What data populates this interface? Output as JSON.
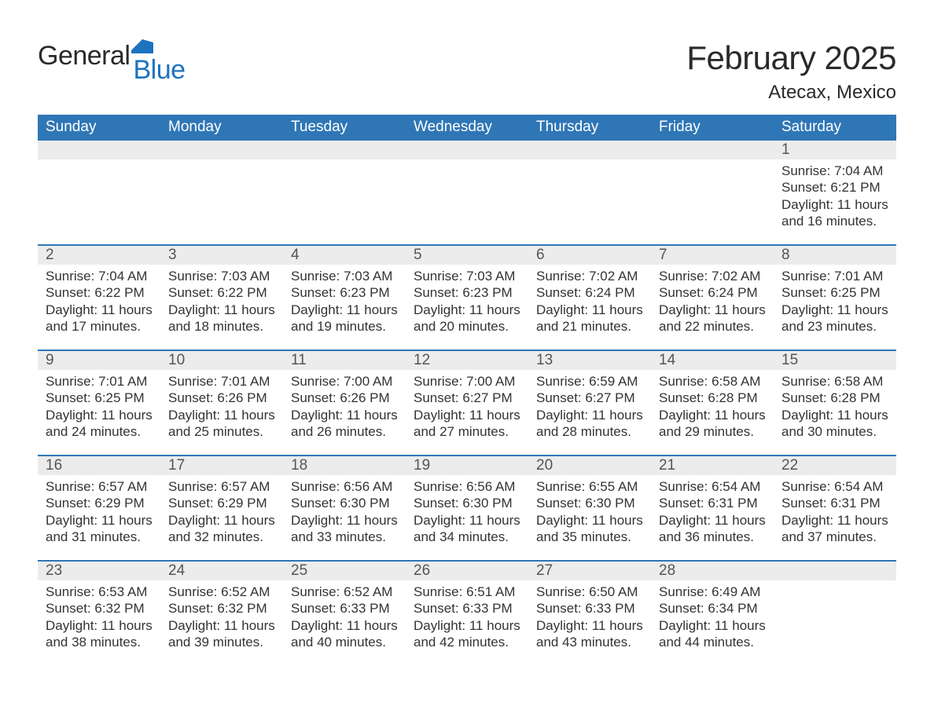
{
  "logo": {
    "text1": "General",
    "text2": "Blue",
    "flag_color": "#1e73be"
  },
  "title": "February 2025",
  "location": "Atecax, Mexico",
  "colors": {
    "header_bg": "#2f76b6",
    "header_text": "#ffffff",
    "row_divider": "#2f76b6",
    "daynum_bg": "#ececec",
    "body_text": "#333333",
    "page_bg": "#ffffff"
  },
  "typography": {
    "title_fontsize": 42,
    "subtitle_fontsize": 24,
    "weekday_fontsize": 19,
    "daynum_fontsize": 19,
    "body_fontsize": 17
  },
  "weekdays": [
    "Sunday",
    "Monday",
    "Tuesday",
    "Wednesday",
    "Thursday",
    "Friday",
    "Saturday"
  ],
  "weeks": [
    [
      null,
      null,
      null,
      null,
      null,
      null,
      {
        "n": "1",
        "sunrise": "Sunrise: 7:04 AM",
        "sunset": "Sunset: 6:21 PM",
        "daylight": "Daylight: 11 hours and 16 minutes."
      }
    ],
    [
      {
        "n": "2",
        "sunrise": "Sunrise: 7:04 AM",
        "sunset": "Sunset: 6:22 PM",
        "daylight": "Daylight: 11 hours and 17 minutes."
      },
      {
        "n": "3",
        "sunrise": "Sunrise: 7:03 AM",
        "sunset": "Sunset: 6:22 PM",
        "daylight": "Daylight: 11 hours and 18 minutes."
      },
      {
        "n": "4",
        "sunrise": "Sunrise: 7:03 AM",
        "sunset": "Sunset: 6:23 PM",
        "daylight": "Daylight: 11 hours and 19 minutes."
      },
      {
        "n": "5",
        "sunrise": "Sunrise: 7:03 AM",
        "sunset": "Sunset: 6:23 PM",
        "daylight": "Daylight: 11 hours and 20 minutes."
      },
      {
        "n": "6",
        "sunrise": "Sunrise: 7:02 AM",
        "sunset": "Sunset: 6:24 PM",
        "daylight": "Daylight: 11 hours and 21 minutes."
      },
      {
        "n": "7",
        "sunrise": "Sunrise: 7:02 AM",
        "sunset": "Sunset: 6:24 PM",
        "daylight": "Daylight: 11 hours and 22 minutes."
      },
      {
        "n": "8",
        "sunrise": "Sunrise: 7:01 AM",
        "sunset": "Sunset: 6:25 PM",
        "daylight": "Daylight: 11 hours and 23 minutes."
      }
    ],
    [
      {
        "n": "9",
        "sunrise": "Sunrise: 7:01 AM",
        "sunset": "Sunset: 6:25 PM",
        "daylight": "Daylight: 11 hours and 24 minutes."
      },
      {
        "n": "10",
        "sunrise": "Sunrise: 7:01 AM",
        "sunset": "Sunset: 6:26 PM",
        "daylight": "Daylight: 11 hours and 25 minutes."
      },
      {
        "n": "11",
        "sunrise": "Sunrise: 7:00 AM",
        "sunset": "Sunset: 6:26 PM",
        "daylight": "Daylight: 11 hours and 26 minutes."
      },
      {
        "n": "12",
        "sunrise": "Sunrise: 7:00 AM",
        "sunset": "Sunset: 6:27 PM",
        "daylight": "Daylight: 11 hours and 27 minutes."
      },
      {
        "n": "13",
        "sunrise": "Sunrise: 6:59 AM",
        "sunset": "Sunset: 6:27 PM",
        "daylight": "Daylight: 11 hours and 28 minutes."
      },
      {
        "n": "14",
        "sunrise": "Sunrise: 6:58 AM",
        "sunset": "Sunset: 6:28 PM",
        "daylight": "Daylight: 11 hours and 29 minutes."
      },
      {
        "n": "15",
        "sunrise": "Sunrise: 6:58 AM",
        "sunset": "Sunset: 6:28 PM",
        "daylight": "Daylight: 11 hours and 30 minutes."
      }
    ],
    [
      {
        "n": "16",
        "sunrise": "Sunrise: 6:57 AM",
        "sunset": "Sunset: 6:29 PM",
        "daylight": "Daylight: 11 hours and 31 minutes."
      },
      {
        "n": "17",
        "sunrise": "Sunrise: 6:57 AM",
        "sunset": "Sunset: 6:29 PM",
        "daylight": "Daylight: 11 hours and 32 minutes."
      },
      {
        "n": "18",
        "sunrise": "Sunrise: 6:56 AM",
        "sunset": "Sunset: 6:30 PM",
        "daylight": "Daylight: 11 hours and 33 minutes."
      },
      {
        "n": "19",
        "sunrise": "Sunrise: 6:56 AM",
        "sunset": "Sunset: 6:30 PM",
        "daylight": "Daylight: 11 hours and 34 minutes."
      },
      {
        "n": "20",
        "sunrise": "Sunrise: 6:55 AM",
        "sunset": "Sunset: 6:30 PM",
        "daylight": "Daylight: 11 hours and 35 minutes."
      },
      {
        "n": "21",
        "sunrise": "Sunrise: 6:54 AM",
        "sunset": "Sunset: 6:31 PM",
        "daylight": "Daylight: 11 hours and 36 minutes."
      },
      {
        "n": "22",
        "sunrise": "Sunrise: 6:54 AM",
        "sunset": "Sunset: 6:31 PM",
        "daylight": "Daylight: 11 hours and 37 minutes."
      }
    ],
    [
      {
        "n": "23",
        "sunrise": "Sunrise: 6:53 AM",
        "sunset": "Sunset: 6:32 PM",
        "daylight": "Daylight: 11 hours and 38 minutes."
      },
      {
        "n": "24",
        "sunrise": "Sunrise: 6:52 AM",
        "sunset": "Sunset: 6:32 PM",
        "daylight": "Daylight: 11 hours and 39 minutes."
      },
      {
        "n": "25",
        "sunrise": "Sunrise: 6:52 AM",
        "sunset": "Sunset: 6:33 PM",
        "daylight": "Daylight: 11 hours and 40 minutes."
      },
      {
        "n": "26",
        "sunrise": "Sunrise: 6:51 AM",
        "sunset": "Sunset: 6:33 PM",
        "daylight": "Daylight: 11 hours and 42 minutes."
      },
      {
        "n": "27",
        "sunrise": "Sunrise: 6:50 AM",
        "sunset": "Sunset: 6:33 PM",
        "daylight": "Daylight: 11 hours and 43 minutes."
      },
      {
        "n": "28",
        "sunrise": "Sunrise: 6:49 AM",
        "sunset": "Sunset: 6:34 PM",
        "daylight": "Daylight: 11 hours and 44 minutes."
      },
      null
    ]
  ]
}
